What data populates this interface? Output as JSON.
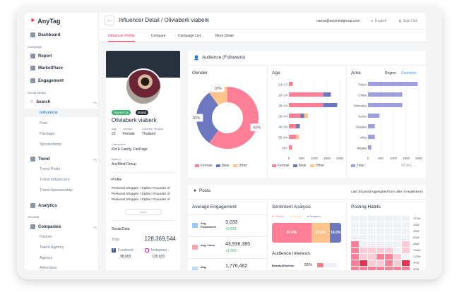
{
  "app": {
    "logo": "AnyTag"
  },
  "sidebar": {
    "dashboard": "Dashboard",
    "campaign_section": "Campaign",
    "report": "Report",
    "marketplace": "MarketPlace",
    "engagement": "Engagement",
    "social_section": "Social Media",
    "search": "Search",
    "search_items": [
      "Influencer",
      "Post",
      "Package",
      "Sponsorship"
    ],
    "trend": "Trend",
    "trend_items": [
      "Trend Posts",
      "Trend Influencers",
      "Trend Sponsorship"
    ],
    "analytics": "Analytics",
    "account_section": "Account",
    "companies": "Companies",
    "company_items": [
      "Partner",
      "Talent Agency",
      "Agency",
      "Advertiser"
    ]
  },
  "header": {
    "title": "Influencer Detail / Oliviaberk viaberk",
    "email": "naoya@anymindgroup.com",
    "language": "English",
    "signout": "Sign Out"
  },
  "tabs": [
    "Influencer Profile",
    "Compare",
    "Campaign List",
    "More Detail"
  ],
  "profile": {
    "badges": [
      "Signed Up",
      "Brand"
    ],
    "name": "Oliviaberk viaberk",
    "age_label": "Age",
    "age": "23",
    "gender_label": "Gender",
    "gender": "Female",
    "country_label": "Country / Region",
    "country": "Thailand",
    "categories_label": "Categories",
    "categories": "Kid & Family, FanPage",
    "agency_label": "Agency",
    "agency": "AnyMind Group",
    "profile_label": "Profile",
    "profile_text": "Personal Shopper / Stylist / Founder of Personal Shopper / Stylist / Founder of Personal Shopper / Stylist / Founder of",
    "more": "more",
    "social_label": "Social Data",
    "total_label": "Total",
    "total": "128,369,544",
    "facebook": "Facebook",
    "facebook_count": "98,003",
    "instagram": "Instagram",
    "instagram_count": "128,033"
  },
  "audience": {
    "title": "Audience (Followers)",
    "gender_title": "Gender",
    "age_title": "Age",
    "area_title": "Area",
    "region": "Region",
    "countries": "Countries",
    "more": "MORE",
    "legend": [
      "Female",
      "Male",
      "Other"
    ],
    "total_legend": "Total"
  },
  "colors": {
    "female": "#ff7f96",
    "male": "#6b78c0",
    "other": "#ffc48c",
    "area": "#9f9fe0",
    "accent": "#ff2d55",
    "link": "#3892e5"
  },
  "chart_data": [
    {
      "type": "pie",
      "title": "Gender",
      "labels": [
        "Female",
        "Male",
        "Other"
      ],
      "values": [
        60,
        30,
        10
      ],
      "display": [
        "60%",
        "30%",
        "10%"
      ]
    },
    {
      "type": "bar",
      "title": "Age",
      "stacked": true,
      "orientation": "horizontal",
      "categories": [
        "13~17",
        "18~24",
        "25~34",
        "35~44",
        "45~54",
        "55~64",
        "65+"
      ],
      "series": [
        {
          "name": "Female",
          "values": [
            150,
            1350,
            1350,
            450,
            280,
            280,
            130
          ]
        },
        {
          "name": "Male",
          "values": [
            0,
            300,
            550,
            150,
            150,
            0,
            0
          ]
        },
        {
          "name": "Other",
          "values": [
            0,
            0,
            0,
            150,
            0,
            120,
            0
          ]
        }
      ],
      "xlim": [
        0,
        2000
      ],
      "xticks": [
        "0",
        "500",
        "1000",
        "1500",
        "2000"
      ]
    },
    {
      "type": "bar",
      "title": "Area",
      "orientation": "horizontal",
      "categories": [
        "Tokyo",
        "Chiba",
        "Shizuoka",
        "Kyoto",
        "Oosaka",
        "Akita",
        "Niigata"
      ],
      "series": [
        {
          "name": "Total",
          "values": [
            1950,
            1350,
            1350,
            450,
            270,
            270,
            130
          ]
        }
      ],
      "xlim": [
        0,
        2000
      ],
      "xticks": [
        "0",
        "500",
        "1000",
        "1500",
        "2000"
      ]
    }
  ],
  "posts": {
    "title": "Posts",
    "note": "Last 30 posts(Aggregated from date of registration)",
    "avg_title": "Average Engagement",
    "metrics": [
      {
        "label": "Avg. Posts/week",
        "value": "3.033",
        "delta": "+0.933"
      },
      {
        "label": "Avg. Likes",
        "value": "43,936,385",
        "delta": "+1,900"
      },
      {
        "label": "Avg.",
        "value": "1,776,462",
        "delta": ""
      }
    ],
    "sentiment_title": "Sentiment Analysis",
    "sentiment": [
      {
        "name": "Positive",
        "value": 57,
        "label": "57.0%"
      },
      {
        "name": "Neutral",
        "value": 27,
        "label": "27.0%"
      },
      {
        "name": "Negative",
        "value": 16,
        "label": "16.0%"
      }
    ],
    "interests_title": "Audience Interests",
    "interests": [
      {
        "name": "Beauty&Fashion",
        "value": 55,
        "label": "55%"
      }
    ],
    "habits_title": "Posting Habits",
    "hours": [
      "12AM",
      "2AM",
      "4AM",
      "6AM",
      "8AM",
      "10AM",
      "12PM",
      "2PM",
      "4PM"
    ],
    "habits": [
      [
        0,
        0,
        0,
        0,
        0,
        0,
        0
      ],
      [
        0,
        0,
        0,
        0,
        0,
        0,
        0
      ],
      [
        0,
        0,
        0,
        0,
        0,
        0,
        0
      ],
      [
        0,
        0,
        0,
        0,
        0,
        0,
        0
      ],
      [
        2,
        0,
        0,
        0,
        0,
        0,
        1
      ],
      [
        2,
        1,
        1,
        1,
        1,
        0,
        1
      ],
      [
        2,
        1,
        1,
        2,
        2,
        1,
        0
      ],
      [
        2,
        3,
        1,
        1,
        2,
        1,
        3
      ],
      [
        2,
        2,
        2,
        2,
        2,
        2,
        2
      ]
    ]
  }
}
